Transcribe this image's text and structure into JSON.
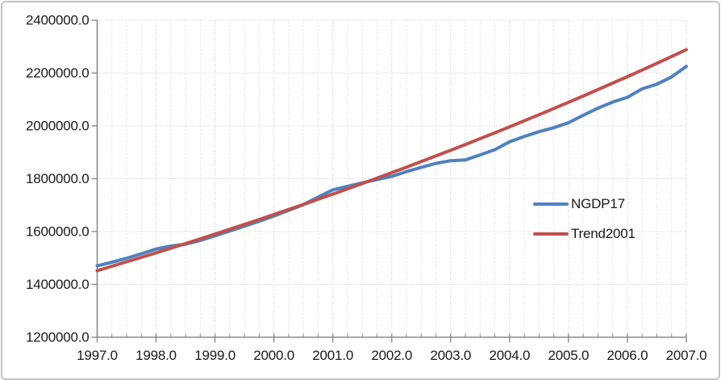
{
  "frame": {
    "background": "#ffffff",
    "border_color": "#c3c3c3"
  },
  "chart_data": {
    "type": "line",
    "title": "",
    "xlabel": "",
    "ylabel": "",
    "xlim": [
      1997.0,
      2007.0
    ],
    "ylim": [
      1200000,
      2400000
    ],
    "x_minor_tick_step": 0.25,
    "x_ticks": [
      1997.0,
      1998.0,
      1999.0,
      2000.0,
      2001.0,
      2002.0,
      2003.0,
      2004.0,
      2005.0,
      2006.0,
      2007.0
    ],
    "x_tick_labels": [
      "1997.0",
      "1998.0",
      "1999.0",
      "2000.0",
      "2001.0",
      "2002.0",
      "2003.0",
      "2004.0",
      "2005.0",
      "2006.0",
      "2007.0"
    ],
    "y_ticks": [
      1200000,
      1400000,
      1600000,
      1800000,
      2000000,
      2200000,
      2400000
    ],
    "y_tick_labels": [
      "1200000.0",
      "1400000.0",
      "1600000.0",
      "1800000.0",
      "2000000.0",
      "2200000.0",
      "2400000.0"
    ],
    "grid": {
      "horizontal": "major-dotted",
      "vertical": "quarterly-dotted"
    },
    "legend_position": "middle-right",
    "line_width": 4,
    "axis_color": "#8c8c8c",
    "gridline_minor_color": "#d8d8d8",
    "gridline_major_color": "#c7c7c7",
    "text_color": "#1a1a1a",
    "x": [
      1997.0,
      1997.25,
      1997.5,
      1997.75,
      1998.0,
      1998.25,
      1998.5,
      1998.75,
      1999.0,
      1999.25,
      1999.5,
      1999.75,
      2000.0,
      2000.25,
      2000.5,
      2000.75,
      2001.0,
      2001.25,
      2001.5,
      2001.75,
      2002.0,
      2002.25,
      2002.5,
      2002.75,
      2003.0,
      2003.25,
      2003.5,
      2003.75,
      2004.0,
      2004.25,
      2004.5,
      2004.75,
      2005.0,
      2005.25,
      2005.5,
      2005.75,
      2006.0,
      2006.25,
      2006.5,
      2006.75,
      2007.0
    ],
    "series": [
      {
        "name": "NGDP17",
        "color": "#4F81BD",
        "values": [
          1470000,
          1484000,
          1499000,
          1516000,
          1534000,
          1545000,
          1552000,
          1566000,
          1584000,
          1602000,
          1620000,
          1639000,
          1659000,
          1680000,
          1702000,
          1730000,
          1758000,
          1771000,
          1784000,
          1797000,
          1809000,
          1827000,
          1843000,
          1858000,
          1868000,
          1871000,
          1890000,
          1910000,
          1940000,
          1960000,
          1978000,
          1993000,
          2012000,
          2040000,
          2067000,
          2090000,
          2108000,
          2140000,
          2158000,
          2185000,
          2225000
        ]
      },
      {
        "name": "Trend2001",
        "color": "#C0504D",
        "values": [
          1452000,
          1468600,
          1485400,
          1502400,
          1519600,
          1536900,
          1554500,
          1572300,
          1590300,
          1608500,
          1626800,
          1645500,
          1664300,
          1683300,
          1702500,
          1722000,
          1741700,
          1761600,
          1781800,
          1802100,
          1822800,
          1843600,
          1864700,
          1886000,
          1907600,
          1929400,
          1951400,
          1973800,
          1996300,
          2019100,
          2042200,
          2065600,
          2089200,
          2113100,
          2137300,
          2161700,
          2186400,
          2211400,
          2236700,
          2262300,
          2288200
        ]
      }
    ]
  }
}
